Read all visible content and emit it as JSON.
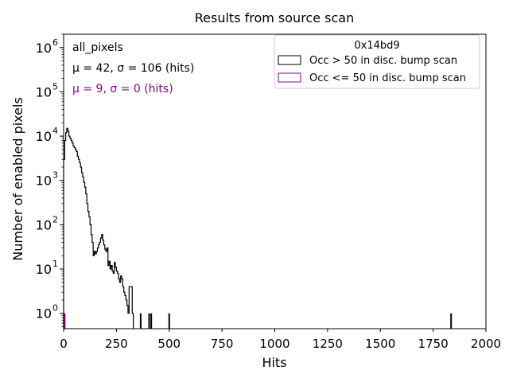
{
  "chart_data": {
    "type": "histogram",
    "title": "Results from source scan",
    "xlabel": "Hits",
    "ylabel": "Number of enabled pixels",
    "yscale": "log",
    "xlim": [
      0,
      2000
    ],
    "ylim": [
      0.45,
      2000000
    ],
    "x_ticks": [
      0,
      250,
      500,
      750,
      1000,
      1250,
      1500,
      1750,
      2000
    ],
    "y_ticks": [
      {
        "value": 1,
        "label": "10",
        "exp": "0"
      },
      {
        "value": 10,
        "label": "10",
        "exp": "1"
      },
      {
        "value": 100,
        "label": "10",
        "exp": "2"
      },
      {
        "value": 1000,
        "label": "10",
        "exp": "3"
      },
      {
        "value": 10000,
        "label": "10",
        "exp": "4"
      },
      {
        "value": 100000,
        "label": "10",
        "exp": "5"
      },
      {
        "value": 1000000,
        "label": "10",
        "exp": "6"
      }
    ],
    "legend": {
      "title": "0x14bd9",
      "placement": "top-right",
      "entries": [
        {
          "label": "Occ > 50 in disc. bump scan",
          "color": "#000000"
        },
        {
          "label": "Occ <= 50 in disc. bump scan",
          "color": "#8b008b"
        }
      ]
    },
    "annotations": [
      {
        "text": "all_pixels",
        "color": "#000000"
      },
      {
        "text": "μ = 42, σ = 106 (hits)",
        "color": "#000000"
      },
      {
        "text": "μ = 9, σ = 0 (hits)",
        "color": "#8b008b"
      }
    ],
    "series": [
      {
        "name": "Occ > 50 in disc. bump scan",
        "color": "#000000",
        "bin_edges": [
          0,
          5,
          10,
          15,
          20,
          25,
          30,
          35,
          40,
          45,
          50,
          55,
          60,
          65,
          70,
          75,
          80,
          85,
          90,
          95,
          100,
          105,
          110,
          115,
          120,
          125,
          130,
          135,
          140,
          145,
          150,
          155,
          160,
          165,
          170,
          175,
          180,
          185,
          190,
          195,
          200,
          205,
          210,
          215,
          220,
          225,
          230,
          235,
          240,
          245,
          250,
          255,
          260,
          265,
          270,
          275,
          280,
          285,
          290,
          295,
          300,
          305,
          310,
          315,
          320,
          325,
          330
        ],
        "counts": [
          3000,
          8000,
          12000,
          15000,
          13000,
          10000,
          9000,
          8000,
          7000,
          6000,
          5500,
          5000,
          4500,
          3500,
          3000,
          2500,
          2000,
          1500,
          1200,
          900,
          700,
          500,
          300,
          200,
          150,
          100,
          60,
          40,
          20,
          25,
          22,
          25,
          30,
          35,
          40,
          50,
          60,
          45,
          35,
          28,
          25,
          30,
          12,
          15,
          10,
          12,
          9,
          8,
          14,
          11,
          9,
          8,
          6,
          5,
          7,
          6,
          4,
          3,
          2.5,
          2,
          1.5,
          1,
          4,
          4,
          4,
          1
        ]
      },
      {
        "name": "Occ > 50 in disc. bump scan (isolated bins)",
        "color": "#000000",
        "isolated": [
          {
            "x": 365,
            "count": 1
          },
          {
            "x": 405,
            "count": 1
          },
          {
            "x": 415,
            "count": 1
          },
          {
            "x": 500,
            "count": 1
          },
          {
            "x": 1835,
            "count": 1
          }
        ]
      },
      {
        "name": "Occ <= 50 in disc. bump scan",
        "color": "#8b008b",
        "isolated": [
          {
            "x": 5,
            "count": 1
          }
        ]
      }
    ]
  }
}
